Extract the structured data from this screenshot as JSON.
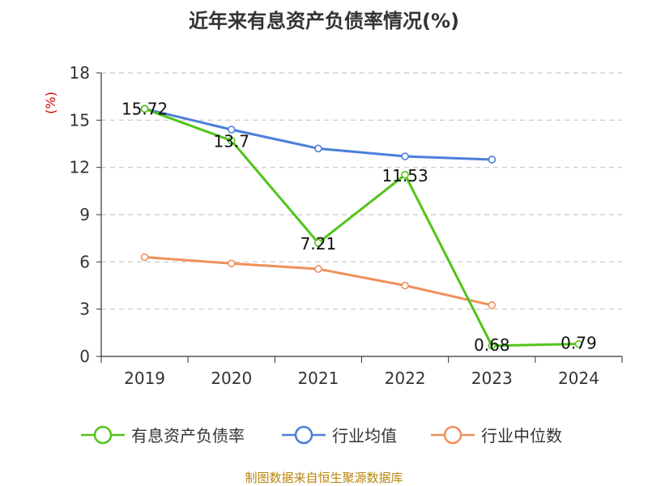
{
  "chart_data": {
    "type": "line",
    "title": "近年来有息资产负债率情况(%)",
    "ylabel": "(%)",
    "xlabel": "",
    "ylim": [
      0,
      18
    ],
    "yticks": [
      "0",
      "3",
      "6",
      "9",
      "12",
      "15",
      "18"
    ],
    "categories": [
      "2019",
      "2020",
      "2021",
      "2022",
      "2023",
      "2024"
    ],
    "grid": true,
    "legend_position": "bottom",
    "series": [
      {
        "name": "有息资产负债率",
        "color": "#52c41a",
        "values": [
          15.72,
          13.7,
          7.21,
          11.53,
          0.68,
          0.79
        ],
        "labels": [
          "15.72",
          "13.7",
          "7.21",
          "11.53",
          "0.68",
          "0.79"
        ]
      },
      {
        "name": "行业均值",
        "color": "#4a7fd9",
        "values": [
          15.72,
          14.4,
          13.2,
          12.7,
          12.5,
          null
        ]
      },
      {
        "name": "行业中位数",
        "color": "#f0905a",
        "values": [
          6.3,
          5.9,
          5.55,
          4.5,
          3.25,
          null
        ]
      }
    ],
    "source": "制图数据来自恒生聚源数据库"
  }
}
